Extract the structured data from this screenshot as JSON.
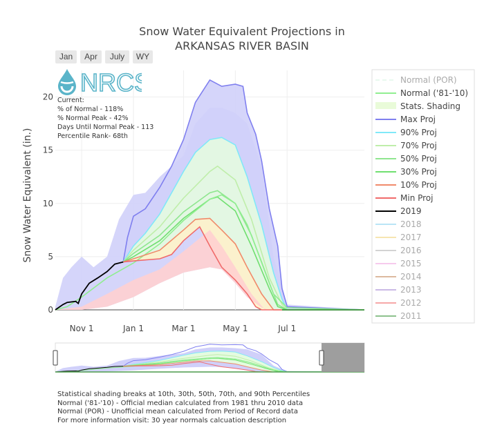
{
  "chart_data": {
    "type": "area",
    "title": "Snow Water Equivalent Projections in",
    "subtitle": "ARKANSAS RIVER BASIN",
    "ylabel": "Snow Water Equivalent (in.)",
    "xlabel": "",
    "x_ticks": [
      "Nov 1",
      "Jan 1",
      "Mar 1",
      "May 1",
      "Jul 1"
    ],
    "y_ticks": [
      0,
      5,
      10,
      15,
      20
    ],
    "ylim": [
      0,
      22.5
    ],
    "grid": true,
    "legend_placement": "right",
    "x_dates": [
      "Oct 1",
      "Nov 1",
      "Dec 1",
      "Jan 1",
      "Feb 1",
      "Mar 1",
      "Apr 1",
      "May 1",
      "Jun 1",
      "Jul 1",
      "Aug 1",
      "Sep 1"
    ],
    "series": [
      {
        "name": "Max Proj",
        "color": "#7f7fef",
        "points": [
          [
            "Dec 20",
            4.5
          ],
          [
            "Dec 25",
            6.8
          ],
          [
            "Jan 1",
            8.8
          ],
          [
            "Jan 15",
            9.5
          ],
          [
            "Feb 1",
            11.5
          ],
          [
            "Feb 15",
            13.5
          ],
          [
            "Mar 1",
            16.0
          ],
          [
            "Mar 15",
            19.5
          ],
          [
            "Apr 1",
            21.6
          ],
          [
            "Apr 15",
            21.0
          ],
          [
            "May 1",
            21.2
          ],
          [
            "May 10",
            21.0
          ],
          [
            "May 15",
            18.5
          ],
          [
            "May 25",
            16.5
          ],
          [
            "Jun 1",
            14.0
          ],
          [
            "Jun 10",
            9.5
          ],
          [
            "Jun 20",
            6.0
          ],
          [
            "Jun 25",
            2.0
          ],
          [
            "Jul 1",
            0.3
          ],
          [
            "Sep 30",
            0
          ]
        ]
      },
      {
        "name": "90% Proj",
        "color": "#80e8f8",
        "points": [
          [
            "Dec 20",
            4.5
          ],
          [
            "Jan 1",
            6.0
          ],
          [
            "Jan 15",
            7.2
          ],
          [
            "Feb 1",
            9.0
          ],
          [
            "Feb 15",
            11.0
          ],
          [
            "Mar 1",
            13.0
          ],
          [
            "Mar 15",
            14.8
          ],
          [
            "Apr 1",
            16.0
          ],
          [
            "Apr 15",
            16.2
          ],
          [
            "May 1",
            15.5
          ],
          [
            "May 15",
            12.5
          ],
          [
            "Jun 1",
            8.0
          ],
          [
            "Jun 15",
            3.5
          ],
          [
            "Jun 25",
            1.0
          ],
          [
            "Jul 1",
            0
          ],
          [
            "Sep 30",
            0
          ]
        ]
      },
      {
        "name": "70% Proj",
        "color": "#bfeeaa",
        "points": [
          [
            "Dec 20",
            4.5
          ],
          [
            "Jan 1",
            5.6
          ],
          [
            "Feb 1",
            7.8
          ],
          [
            "Mar 1",
            10.5
          ],
          [
            "Apr 1",
            13.0
          ],
          [
            "Apr 10",
            13.5
          ],
          [
            "May 1",
            12.2
          ],
          [
            "May 20",
            8.5
          ],
          [
            "Jun 10",
            3.0
          ],
          [
            "Jun 25",
            0.5
          ],
          [
            "Jul 1",
            0
          ],
          [
            "Sep 30",
            0
          ]
        ]
      },
      {
        "name": "50% Proj",
        "color": "#8fe68f",
        "points": [
          [
            "Dec 20",
            4.5
          ],
          [
            "Jan 1",
            5.3
          ],
          [
            "Feb 1",
            7.0
          ],
          [
            "Mar 1",
            9.2
          ],
          [
            "Apr 1",
            11.0
          ],
          [
            "Apr 10",
            11.2
          ],
          [
            "May 1",
            10.0
          ],
          [
            "May 20",
            7.0
          ],
          [
            "Jun 10",
            2.5
          ],
          [
            "Jun 20",
            0.5
          ],
          [
            "Jul 1",
            0
          ],
          [
            "Sep 30",
            0
          ]
        ]
      },
      {
        "name": "30% Proj",
        "color": "#6fdf6f",
        "points": [
          [
            "Dec 20",
            4.5
          ],
          [
            "Jan 1",
            5.0
          ],
          [
            "Feb 1",
            6.5
          ],
          [
            "Mar 1",
            8.6
          ],
          [
            "Apr 1",
            10.4
          ],
          [
            "Apr 10",
            10.6
          ],
          [
            "May 1",
            9.3
          ],
          [
            "May 20",
            6.0
          ],
          [
            "Jun 10",
            2.0
          ],
          [
            "Jun 20",
            0.3
          ],
          [
            "Jul 1",
            0
          ],
          [
            "Sep 30",
            0
          ]
        ]
      },
      {
        "name": "10% Proj",
        "color": "#f08a6a",
        "points": [
          [
            "Dec 20",
            4.5
          ],
          [
            "Jan 1",
            4.8
          ],
          [
            "Feb 1",
            5.6
          ],
          [
            "Mar 1",
            7.5
          ],
          [
            "Mar 15",
            8.5
          ],
          [
            "Apr 1",
            8.6
          ],
          [
            "Apr 15",
            7.5
          ],
          [
            "May 1",
            6.2
          ],
          [
            "May 15",
            4.0
          ],
          [
            "Jun 1",
            1.5
          ],
          [
            "Jun 15",
            0
          ],
          [
            "Sep 30",
            0
          ]
        ]
      },
      {
        "name": "Min Proj",
        "color": "#f06a6a",
        "points": [
          [
            "Dec 20",
            4.5
          ],
          [
            "Jan 1",
            4.6
          ],
          [
            "Feb 1",
            4.8
          ],
          [
            "Feb 15",
            5.2
          ],
          [
            "Mar 1",
            6.5
          ],
          [
            "Mar 20",
            7.8
          ],
          [
            "Apr 1",
            6.0
          ],
          [
            "Apr 15",
            4.0
          ],
          [
            "May 1",
            2.8
          ],
          [
            "May 15",
            1.5
          ],
          [
            "May 25",
            0.3
          ],
          [
            "Jun 1",
            0
          ],
          [
            "Sep 30",
            0
          ]
        ]
      },
      {
        "name": "Normal ('81-'10)",
        "color": "#90ee90",
        "points": [
          [
            "Oct 1",
            0
          ],
          [
            "Oct 15",
            0.3
          ],
          [
            "Nov 1",
            1.2
          ],
          [
            "Dec 1",
            3.0
          ],
          [
            "Jan 1",
            4.4
          ],
          [
            "Feb 1",
            6.2
          ],
          [
            "Mar 1",
            8.4
          ],
          [
            "Apr 1",
            10.4
          ],
          [
            "Apr 15",
            10.8
          ],
          [
            "May 1",
            10.0
          ],
          [
            "May 15",
            8.0
          ],
          [
            "Jun 1",
            4.5
          ],
          [
            "Jun 15",
            1.5
          ],
          [
            "Jul 1",
            0.2
          ],
          [
            "Sep 30",
            0
          ]
        ]
      },
      {
        "name": "2019",
        "color": "#000000",
        "points": [
          [
            "Oct 1",
            0
          ],
          [
            "Oct 10",
            0.5
          ],
          [
            "Oct 15",
            0.7
          ],
          [
            "Oct 25",
            0.8
          ],
          [
            "Oct 28",
            0.6
          ],
          [
            "Nov 1",
            1.5
          ],
          [
            "Nov 10",
            2.5
          ],
          [
            "Nov 20",
            3.0
          ],
          [
            "Dec 1",
            3.6
          ],
          [
            "Dec 10",
            4.3
          ],
          [
            "Dec 20",
            4.5
          ]
        ]
      }
    ],
    "shading": {
      "name": "Stats. Shading",
      "upper": [
        [
          "Oct 1",
          0.3
        ],
        [
          "Oct 10",
          3.0
        ],
        [
          "Oct 20",
          4.0
        ],
        [
          "Nov 1",
          5.0
        ],
        [
          "Nov 15",
          4.0
        ],
        [
          "Dec 1",
          5.0
        ],
        [
          "Dec 15",
          8.5
        ],
        [
          "Jan 1",
          10.8
        ],
        [
          "Jan 15",
          11.0
        ],
        [
          "Feb 1",
          12.5
        ],
        [
          "Feb 15",
          13.5
        ],
        [
          "Mar 1",
          14.5
        ],
        [
          "Mar 15",
          17.5
        ],
        [
          "Apr 1",
          19.0
        ],
        [
          "Apr 15",
          19.0
        ],
        [
          "May 1",
          18.5
        ],
        [
          "May 15",
          17.5
        ],
        [
          "Jun 1",
          13.5
        ],
        [
          "Jun 15",
          5.0
        ],
        [
          "Jul 1",
          0.5
        ],
        [
          "Sep 30",
          0
        ]
      ],
      "lower": [
        [
          "Oct 1",
          0
        ],
        [
          "Nov 1",
          0
        ],
        [
          "Dec 1",
          0.3
        ],
        [
          "Jan 1",
          1.2
        ],
        [
          "Feb 1",
          2.5
        ],
        [
          "Mar 1",
          3.5
        ],
        [
          "Apr 1",
          4.0
        ],
        [
          "Apr 15",
          3.8
        ],
        [
          "May 1",
          2.5
        ],
        [
          "May 15",
          1.2
        ],
        [
          "Jun 1",
          0.2
        ],
        [
          "Jun 10",
          0
        ],
        [
          "Sep 30",
          0
        ]
      ]
    },
    "legend": [
      {
        "label": "Normal (POR)",
        "color": "#d6f5e3",
        "style": "dash",
        "faded": true
      },
      {
        "label": "Normal ('81-'10)",
        "color": "#90ee90",
        "style": "line"
      },
      {
        "label": "Stats. Shading",
        "color": "#e9fbd9",
        "style": "block"
      },
      {
        "label": "Max Proj",
        "color": "#7f7fef",
        "style": "line"
      },
      {
        "label": "90% Proj",
        "color": "#80e8f8",
        "style": "line"
      },
      {
        "label": "70% Proj",
        "color": "#bfeeaa",
        "style": "line"
      },
      {
        "label": "50% Proj",
        "color": "#8fe68f",
        "style": "line"
      },
      {
        "label": "30% Proj",
        "color": "#6fdf6f",
        "style": "line"
      },
      {
        "label": "10% Proj",
        "color": "#f08a6a",
        "style": "line"
      },
      {
        "label": "Min Proj",
        "color": "#f06a6a",
        "style": "line"
      },
      {
        "label": "2019",
        "color": "#000000",
        "style": "line"
      },
      {
        "label": "2018",
        "color": "#80d0f0",
        "style": "line",
        "faded": true
      },
      {
        "label": "2017",
        "color": "#f0d070",
        "style": "line",
        "faded": true
      },
      {
        "label": "2016",
        "color": "#b0b0b0",
        "style": "line",
        "faded": true
      },
      {
        "label": "2015",
        "color": "#f0a0e0",
        "style": "line",
        "faded": true
      },
      {
        "label": "2014",
        "color": "#c08050",
        "style": "line",
        "faded": true
      },
      {
        "label": "2013",
        "color": "#a080d0",
        "style": "line",
        "faded": true
      },
      {
        "label": "2012",
        "color": "#f06060",
        "style": "line",
        "faded": true
      },
      {
        "label": "2011",
        "color": "#309030",
        "style": "line",
        "faded": true
      }
    ]
  },
  "range_buttons": [
    "Jan",
    "Apr",
    "July",
    "WY"
  ],
  "logo_text": "NRCS",
  "stats": {
    "line1": "Current:",
    "line2": "% of Normal - 118%",
    "line3": "% Normal Peak - 42%",
    "line4": "Days Until Normal Peak - 113",
    "line5": "Percentile Rank- 68th"
  },
  "footnotes": {
    "line1": "Statistical shading breaks at 10th, 30th, 50th, 70th, and 90th Percentiles",
    "line2": "Normal ('81-'10) - Official median calculated from 1981 thru 2010 data",
    "line3": "Normal (POR) - Unofficial mean calculated from Period of Record data",
    "line4": "For more information visit: 30 year normals calcuation description"
  },
  "colors": {
    "plot_bg": "#ffffff",
    "grid": "#eeeeee",
    "axis_text": "#444444",
    "normal_area": "#d7f7c3",
    "stats_band": "#e9fbd9",
    "low_band": "#ffd0d0",
    "max_band": "#d0d0fa",
    "range_mask": "#999999"
  }
}
